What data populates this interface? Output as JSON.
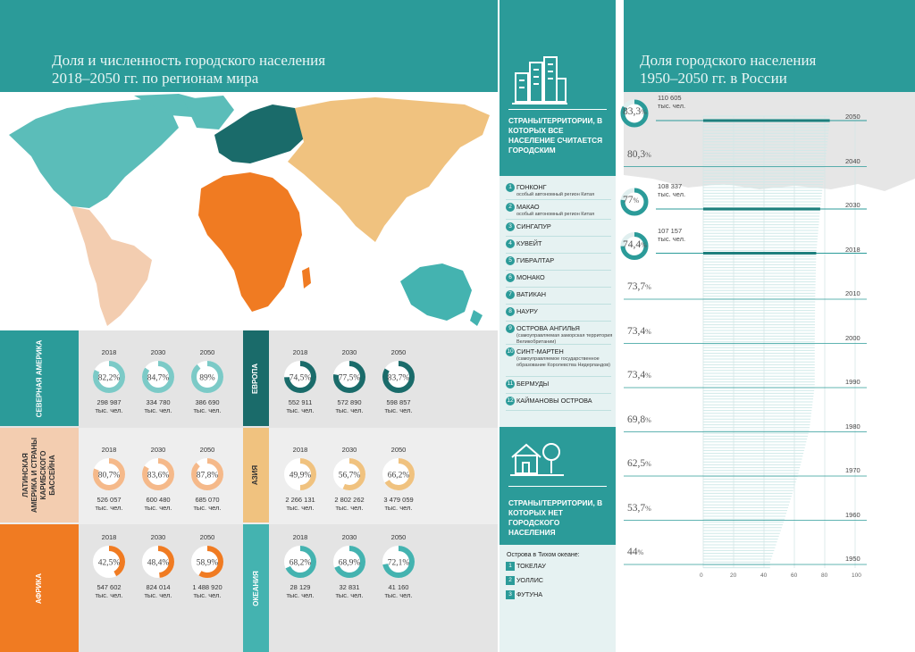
{
  "left": {
    "title_line1": "Доля и численность городского населения",
    "title_line2": "2018–2050 гг. по регионам мира",
    "regions": [
      {
        "name": "СЕВЕРНАЯ АМЕРИКА",
        "label_color": "#2b9b99",
        "stats": [
          {
            "year": "2018",
            "pct": "82,2%",
            "pct_value": 82.2,
            "num": "298 987",
            "unit": "тыс. чел."
          },
          {
            "year": "2030",
            "pct": "84,7%",
            "pct_value": 84.7,
            "num": "334 780",
            "unit": "тыс. чел."
          },
          {
            "year": "2050",
            "pct": "89%",
            "pct_value": 89,
            "num": "386 690",
            "unit": "тыс. чел."
          }
        ]
      },
      {
        "name": "ЕВРОПА",
        "label_color": "#1a6b6a",
        "stats": [
          {
            "year": "2018",
            "pct": "74,5%",
            "pct_value": 74.5,
            "num": "552 911",
            "unit": "тыс. чел."
          },
          {
            "year": "2030",
            "pct": "77,5%",
            "pct_value": 77.5,
            "num": "572 890",
            "unit": "тыс. чел."
          },
          {
            "year": "2050",
            "pct": "83,7%",
            "pct_value": 83.7,
            "num": "598 857",
            "unit": "тыс. чел."
          }
        ]
      },
      {
        "name": "ЛАТИНСКАЯ АМЕРИКА И СТРАНЫ КАРИБСКОГО БАССЕЙНА",
        "label_color": "#f3cdb0",
        "stats": [
          {
            "year": "2018",
            "pct": "80,7%",
            "pct_value": 80.7,
            "num": "526 057",
            "unit": "тыс. чел."
          },
          {
            "year": "2030",
            "pct": "83,6%",
            "pct_value": 83.6,
            "num": "600 480",
            "unit": "тыс. чел."
          },
          {
            "year": "2050",
            "pct": "87,8%",
            "pct_value": 87.8,
            "num": "685 070",
            "unit": "тыс. чел."
          }
        ]
      },
      {
        "name": "АЗИЯ",
        "label_color": "#f0c27f",
        "stats": [
          {
            "year": "2018",
            "pct": "49,9%",
            "pct_value": 49.9,
            "num": "2 266 131",
            "unit": "тыс. чел."
          },
          {
            "year": "2030",
            "pct": "56,7%",
            "pct_value": 56.7,
            "num": "2 802 262",
            "unit": "тыс. чел."
          },
          {
            "year": "2050",
            "pct": "66,2%",
            "pct_value": 66.2,
            "num": "3 479 059",
            "unit": "тыс. чел."
          }
        ]
      },
      {
        "name": "АФРИКА",
        "label_color": "#f07b22",
        "stats": [
          {
            "year": "2018",
            "pct": "42,5%",
            "pct_value": 42.5,
            "num": "547 602",
            "unit": "тыс. чел."
          },
          {
            "year": "2030",
            "pct": "48,4%",
            "pct_value": 48.4,
            "num": "824 014",
            "unit": "тыс. чел."
          },
          {
            "year": "2050",
            "pct": "58,9%",
            "pct_value": 58.9,
            "num": "1 488 920",
            "unit": "тыс. чел."
          }
        ]
      },
      {
        "name": "ОКЕАНИЯ",
        "label_color": "#44b3b0",
        "stats": [
          {
            "year": "2018",
            "pct": "68,2%",
            "pct_value": 68.2,
            "num": "28 129",
            "unit": "тыс. чел."
          },
          {
            "year": "2030",
            "pct": "68,9%",
            "pct_value": 68.9,
            "num": "32 831",
            "unit": "тыс. чел."
          },
          {
            "year": "2050",
            "pct": "72,1%",
            "pct_value": 72.1,
            "num": "41 160",
            "unit": "тыс. чел."
          }
        ]
      }
    ]
  },
  "middle": {
    "all_urban_heading": "СТРАНЫ/ТЕРРИТОРИИ, В КОТОРЫХ ВСЕ НАСЕЛЕНИЕ СЧИТАЕТСЯ ГОРОДСКИМ",
    "all_urban": [
      {
        "n": "1",
        "name": "ГОНКОНГ",
        "sub": "особый автономный регион Китая"
      },
      {
        "n": "2",
        "name": "МАКАО",
        "sub": "особый автономный регион Китая"
      },
      {
        "n": "3",
        "name": "СИНГАПУР",
        "sub": ""
      },
      {
        "n": "4",
        "name": "КУВЕЙТ",
        "sub": ""
      },
      {
        "n": "5",
        "name": "ГИБРАЛТАР",
        "sub": ""
      },
      {
        "n": "6",
        "name": "МОНАКО",
        "sub": ""
      },
      {
        "n": "7",
        "name": "ВАТИКАН",
        "sub": ""
      },
      {
        "n": "8",
        "name": "НАУРУ",
        "sub": ""
      },
      {
        "n": "9",
        "name": "ОСТРОВА АНГИЛЬЯ",
        "sub": "(самоуправляемая заморская территория Великобритании)"
      },
      {
        "n": "10",
        "name": "СИНТ-МАРТЕН",
        "sub": "(самоуправляемое государственное образование Королевства Нидерландов)"
      },
      {
        "n": "11",
        "name": "БЕРМУДЫ",
        "sub": ""
      },
      {
        "n": "12",
        "name": "КАЙМАНОВЫ ОСТРОВА",
        "sub": ""
      }
    ],
    "no_urban_heading": "СТРАНЫ/ТЕРРИТОРИИ, В КОТОРЫХ НЕТ ГОРОДСКОГО НАСЕЛЕНИЯ",
    "pacific_caption": "Острова в Тихом океане:",
    "no_urban": [
      {
        "n": "1",
        "name": "ТОКЕЛАУ"
      },
      {
        "n": "2",
        "name": "УОЛЛИС"
      },
      {
        "n": "3",
        "name": "ФУТУНА"
      }
    ]
  },
  "right": {
    "title_line1": "Доля городского населения",
    "title_line2": "1950–2050 гг. в России",
    "chart_data": {
      "type": "bar",
      "title": "Доля городского населения 1950–2050 гг. в России",
      "categories": [
        "2050",
        "2040",
        "2030",
        "2018",
        "2010",
        "2000",
        "1990",
        "1980",
        "1970",
        "1960",
        "1950"
      ],
      "values": [
        83.3,
        80.3,
        77,
        74.4,
        73.7,
        73.4,
        73.4,
        69.8,
        62.5,
        53.7,
        44
      ],
      "value_labels": [
        "83,3",
        "80,3",
        "77",
        "74,4",
        "73,7",
        "73,4",
        "73,4",
        "69,8",
        "62,5",
        "53,7",
        "44"
      ],
      "highlight": [
        {
          "year": "2050",
          "num": "110 605",
          "unit": "тыс. чел."
        },
        {
          "year": "2030",
          "num": "108 337",
          "unit": "тыс. чел."
        },
        {
          "year": "2018",
          "num": "107 157",
          "unit": "тыс. чел."
        }
      ],
      "x_ticks": [
        "0",
        "20",
        "40",
        "60",
        "80",
        "100"
      ],
      "xlim": [
        0,
        100
      ],
      "grid": true
    }
  },
  "colors": {
    "teal": "#2b9b99",
    "dark_teal": "#1a6b6a",
    "orange": "#f07b22",
    "sand": "#f0c27f",
    "peach": "#f3cdb0",
    "grey": "#e4e4e4"
  }
}
